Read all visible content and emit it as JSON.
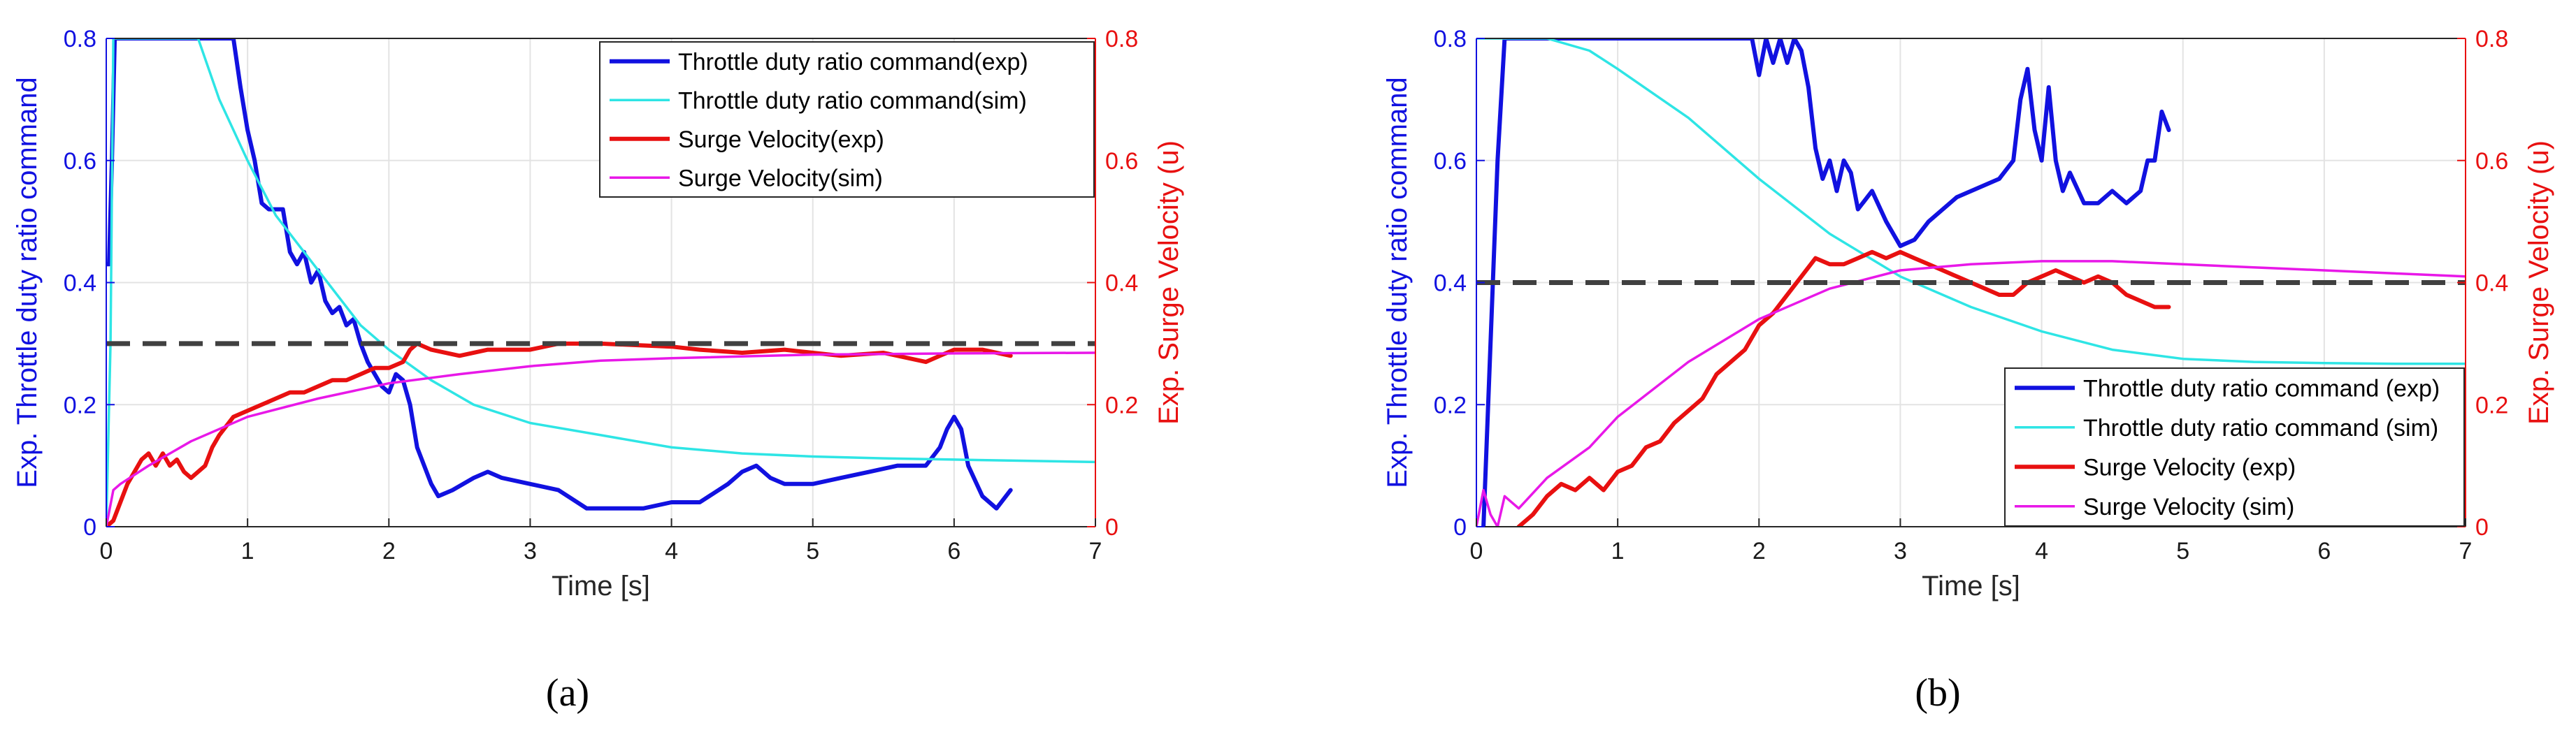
{
  "chart_data": [
    {
      "type": "line",
      "panel_label": "(a)",
      "xlabel": "Time [s]",
      "ylabel_left": "Exp. Throttle duty ratio command",
      "ylabel_right": "Exp. Surge Velocity (u)",
      "xlim": [
        0,
        7
      ],
      "ylim_left": [
        0,
        0.8
      ],
      "ylim_right": [
        0,
        0.8
      ],
      "xticks": [
        "0",
        "1",
        "2",
        "3",
        "4",
        "5",
        "6",
        "7"
      ],
      "yticks_left": [
        "0",
        "0.2",
        "0.4",
        "0.6",
        "0.8"
      ],
      "yticks_right": [
        "0",
        "0.2",
        "0.4",
        "0.6",
        "0.8"
      ],
      "grid": true,
      "legend_position": "top-right",
      "reference_line": {
        "y": 0.3,
        "style": "dashed",
        "color": "#404040"
      },
      "series": [
        {
          "name": "Throttle duty ratio command(exp)",
          "axis": "left",
          "color": "#1111e0",
          "x": [
            0,
            0.02,
            0.04,
            0.06,
            0.1,
            0.9,
            0.95,
            1.0,
            1.05,
            1.1,
            1.15,
            1.25,
            1.3,
            1.35,
            1.4,
            1.45,
            1.5,
            1.55,
            1.6,
            1.65,
            1.7,
            1.75,
            1.8,
            1.85,
            1.9,
            1.95,
            2.0,
            2.05,
            2.1,
            2.15,
            2.2,
            2.3,
            2.35,
            2.45,
            2.6,
            2.7,
            2.8,
            3.0,
            3.2,
            3.4,
            3.6,
            3.8,
            4.0,
            4.2,
            4.4,
            4.5,
            4.6,
            4.7,
            4.8,
            5.0,
            5.2,
            5.4,
            5.6,
            5.8,
            5.9,
            5.95,
            6.0,
            6.05,
            6.1,
            6.2,
            6.3,
            6.4
          ],
          "y": [
            0.43,
            0.43,
            0.6,
            0.8,
            0.8,
            0.8,
            0.72,
            0.65,
            0.6,
            0.53,
            0.52,
            0.52,
            0.45,
            0.43,
            0.45,
            0.4,
            0.42,
            0.37,
            0.35,
            0.36,
            0.33,
            0.34,
            0.3,
            0.27,
            0.25,
            0.23,
            0.22,
            0.25,
            0.24,
            0.2,
            0.13,
            0.07,
            0.05,
            0.06,
            0.08,
            0.09,
            0.08,
            0.07,
            0.06,
            0.03,
            0.03,
            0.03,
            0.04,
            0.04,
            0.07,
            0.09,
            0.1,
            0.08,
            0.07,
            0.07,
            0.08,
            0.09,
            0.1,
            0.1,
            0.13,
            0.16,
            0.18,
            0.16,
            0.1,
            0.05,
            0.03,
            0.06
          ]
        },
        {
          "name": "Throttle duty ratio command(sim)",
          "axis": "left",
          "color": "#2ee5e5",
          "x": [
            0,
            0.03,
            0.05,
            0.65,
            0.8,
            1.0,
            1.2,
            1.5,
            1.8,
            2.0,
            2.3,
            2.6,
            3.0,
            3.5,
            4.0,
            4.5,
            5.0,
            5.5,
            6.0,
            6.5,
            7.0
          ],
          "y": [
            0,
            0.3,
            0.8,
            0.8,
            0.7,
            0.6,
            0.51,
            0.42,
            0.33,
            0.29,
            0.24,
            0.2,
            0.17,
            0.15,
            0.13,
            0.12,
            0.115,
            0.112,
            0.11,
            0.108,
            0.106
          ]
        },
        {
          "name": "Surge Velocity(exp)",
          "axis": "right",
          "color": "#e81010",
          "x": [
            0,
            0.05,
            0.1,
            0.15,
            0.2,
            0.25,
            0.3,
            0.35,
            0.4,
            0.45,
            0.5,
            0.55,
            0.6,
            0.65,
            0.7,
            0.75,
            0.8,
            0.9,
            1.0,
            1.1,
            1.2,
            1.3,
            1.4,
            1.5,
            1.6,
            1.7,
            1.8,
            1.9,
            2.0,
            2.1,
            2.15,
            2.2,
            2.3,
            2.5,
            2.7,
            3.0,
            3.2,
            3.5,
            4.0,
            4.2,
            4.5,
            4.8,
            5.0,
            5.2,
            5.5,
            5.8,
            5.9,
            6.0,
            6.2,
            6.4
          ],
          "y": [
            0,
            0.01,
            0.04,
            0.07,
            0.09,
            0.11,
            0.12,
            0.1,
            0.12,
            0.1,
            0.11,
            0.09,
            0.08,
            0.09,
            0.1,
            0.13,
            0.15,
            0.18,
            0.19,
            0.2,
            0.21,
            0.22,
            0.22,
            0.23,
            0.24,
            0.24,
            0.25,
            0.26,
            0.26,
            0.27,
            0.29,
            0.3,
            0.29,
            0.28,
            0.29,
            0.29,
            0.3,
            0.3,
            0.295,
            0.29,
            0.285,
            0.29,
            0.285,
            0.28,
            0.285,
            0.27,
            0.28,
            0.29,
            0.29,
            0.28
          ]
        },
        {
          "name": "Surge Velocity(sim)",
          "axis": "right",
          "color": "#e818e8",
          "x": [
            0,
            0.05,
            0.1,
            0.3,
            0.6,
            1.0,
            1.5,
            2.0,
            2.5,
            3.0,
            3.5,
            4.0,
            5.0,
            6.0,
            7.0
          ],
          "y": [
            0,
            0.06,
            0.07,
            0.1,
            0.14,
            0.18,
            0.21,
            0.235,
            0.25,
            0.263,
            0.272,
            0.276,
            0.282,
            0.284,
            0.285
          ]
        }
      ]
    },
    {
      "type": "line",
      "panel_label": "(b)",
      "xlabel": "Time [s]",
      "ylabel_left": "Exp. Throttle duty ratio command",
      "ylabel_right": "Exp. Surge Velocity (u)",
      "xlim": [
        0,
        7
      ],
      "ylim_left": [
        0,
        0.8
      ],
      "ylim_right": [
        0,
        0.8
      ],
      "xticks": [
        "0",
        "1",
        "2",
        "3",
        "4",
        "5",
        "6",
        "7"
      ],
      "yticks_left": [
        "0",
        "0.2",
        "0.4",
        "0.6",
        "0.8"
      ],
      "yticks_right": [
        "0",
        "0.2",
        "0.4",
        "0.6",
        "0.8"
      ],
      "grid": true,
      "legend_position": "bottom-right",
      "reference_line": {
        "y": 0.4,
        "style": "dashed",
        "color": "#404040"
      },
      "series": [
        {
          "name": "Throttle duty ratio command (exp)",
          "axis": "left",
          "color": "#1111e0",
          "x": [
            0.05,
            0.1,
            0.15,
            0.2,
            0.25,
            1.95,
            2.0,
            2.05,
            2.1,
            2.15,
            2.2,
            2.25,
            2.3,
            2.35,
            2.4,
            2.45,
            2.5,
            2.55,
            2.6,
            2.65,
            2.7,
            2.8,
            2.9,
            3.0,
            3.1,
            3.2,
            3.4,
            3.6,
            3.7,
            3.8,
            3.85,
            3.9,
            3.95,
            4.0,
            4.05,
            4.1,
            4.15,
            4.2,
            4.3,
            4.4,
            4.5,
            4.6,
            4.7,
            4.75,
            4.8,
            4.85,
            4.9
          ],
          "y": [
            0,
            0.3,
            0.6,
            0.8,
            0.8,
            0.8,
            0.74,
            0.8,
            0.76,
            0.8,
            0.76,
            0.8,
            0.78,
            0.72,
            0.62,
            0.57,
            0.6,
            0.55,
            0.6,
            0.58,
            0.52,
            0.55,
            0.5,
            0.46,
            0.47,
            0.5,
            0.54,
            0.56,
            0.57,
            0.6,
            0.7,
            0.75,
            0.65,
            0.6,
            0.72,
            0.6,
            0.55,
            0.58,
            0.53,
            0.53,
            0.55,
            0.53,
            0.55,
            0.6,
            0.6,
            0.68,
            0.65
          ]
        },
        {
          "name": "Throttle duty ratio command (sim)",
          "axis": "left",
          "color": "#2ee5e5",
          "x": [
            0,
            0.05,
            0.5,
            0.8,
            1.0,
            1.5,
            2.0,
            2.5,
            3.0,
            3.5,
            4.0,
            4.5,
            5.0,
            5.5,
            6.0,
            6.5,
            7.0
          ],
          "y": [
            0.8,
            0.8,
            0.8,
            0.78,
            0.75,
            0.67,
            0.57,
            0.48,
            0.41,
            0.36,
            0.32,
            0.29,
            0.275,
            0.27,
            0.268,
            0.267,
            0.267
          ]
        },
        {
          "name": "Surge Velocity (exp)",
          "axis": "right",
          "color": "#e81010",
          "x": [
            0.3,
            0.4,
            0.5,
            0.6,
            0.7,
            0.8,
            0.9,
            1.0,
            1.1,
            1.2,
            1.3,
            1.4,
            1.5,
            1.6,
            1.7,
            1.8,
            1.9,
            2.0,
            2.1,
            2.2,
            2.3,
            2.4,
            2.5,
            2.6,
            2.7,
            2.8,
            2.9,
            3.0,
            3.1,
            3.2,
            3.3,
            3.4,
            3.5,
            3.6,
            3.7,
            3.8,
            3.9,
            4.0,
            4.1,
            4.2,
            4.3,
            4.4,
            4.5,
            4.6,
            4.7,
            4.8,
            4.9
          ],
          "y": [
            0,
            0.02,
            0.05,
            0.07,
            0.06,
            0.08,
            0.06,
            0.09,
            0.1,
            0.13,
            0.14,
            0.17,
            0.19,
            0.21,
            0.25,
            0.27,
            0.29,
            0.33,
            0.35,
            0.38,
            0.41,
            0.44,
            0.43,
            0.43,
            0.44,
            0.45,
            0.44,
            0.45,
            0.44,
            0.43,
            0.42,
            0.41,
            0.4,
            0.39,
            0.38,
            0.38,
            0.4,
            0.41,
            0.42,
            0.41,
            0.4,
            0.41,
            0.4,
            0.38,
            0.37,
            0.36,
            0.36
          ]
        },
        {
          "name": "Surge Velocity (sim)",
          "axis": "right",
          "color": "#e818e8",
          "x": [
            0,
            0.05,
            0.1,
            0.15,
            0.2,
            0.3,
            0.5,
            0.8,
            1.0,
            1.5,
            2.0,
            2.5,
            3.0,
            3.5,
            4.0,
            4.5,
            5.0,
            5.5,
            6.0,
            6.5,
            7.0
          ],
          "y": [
            0,
            0.06,
            0.02,
            0.0,
            0.05,
            0.03,
            0.08,
            0.13,
            0.18,
            0.27,
            0.34,
            0.39,
            0.42,
            0.43,
            0.435,
            0.435,
            0.43,
            0.425,
            0.42,
            0.415,
            0.41
          ]
        }
      ]
    }
  ]
}
